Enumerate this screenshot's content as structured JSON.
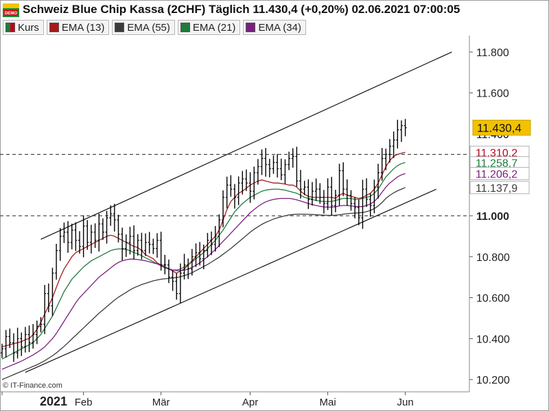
{
  "header": {
    "title": "Schweiz Blue Chip Kassa (2CHF) Täglich 11.430,4 (+0,20%) 02.06.2021 07:00:05",
    "badge_text": "DEMO"
  },
  "legend": [
    {
      "label": "Kurs",
      "color": "#c0001a"
    },
    {
      "label": "EMA (13)",
      "color": "#a8191b"
    },
    {
      "label": "EMA (55)",
      "color": "#3a3a3a"
    },
    {
      "label": "EMA (21)",
      "color": "#1f7a3e"
    },
    {
      "label": "EMA (34)",
      "color": "#7a1f7e"
    }
  ],
  "copyright": "© IT-Finance.com",
  "chart_data": {
    "type": "line",
    "subtype": "ohlc-bars with EMA overlays and trend channel",
    "ylim": [
      10140,
      11880
    ],
    "y_ticks": [
      "10.200",
      "10.400",
      "10.600",
      "10.800",
      "11.000",
      "11.600",
      "11.800"
    ],
    "y_tick_values": [
      10200,
      10400,
      10600,
      10800,
      11000,
      11600,
      11800
    ],
    "y_tick_bold": [
      false,
      false,
      false,
      false,
      true,
      false,
      false
    ],
    "y_partial_labels": [
      {
        "text": "11.400",
        "value": 11400,
        "color": "#000000"
      },
      {
        "text": "11.310,2",
        "value": 11304,
        "color": "#c0001a"
      }
    ],
    "x_labels": [
      {
        "text": "2021",
        "day": 0,
        "bold": true
      },
      {
        "text": "Feb",
        "day": 21
      },
      {
        "text": "Mär",
        "day": 41
      },
      {
        "text": "Apr",
        "day": 64
      },
      {
        "text": "Mai",
        "day": 84
      },
      {
        "text": "Jun",
        "day": 104
      }
    ],
    "last_price": {
      "text": "11.430,4",
      "value": 11430.4,
      "color": "#f2c200"
    },
    "series": [
      {
        "name": "Kurs",
        "color": "#000000",
        "closes": [
          10350,
          10410,
          10380,
          10330,
          10400,
          10360,
          10420,
          10380,
          10420,
          10460,
          10470,
          10620,
          10560,
          10720,
          10830,
          10900,
          10920,
          10870,
          10930,
          10880,
          10850,
          10950,
          10870,
          10920,
          10880,
          10960,
          10920,
          10990,
          11010,
          10980,
          10910,
          10840,
          10870,
          10900,
          10830,
          10880,
          10830,
          10870,
          10860,
          10840,
          10880,
          10760,
          10760,
          10700,
          10680,
          10620,
          10720,
          10760,
          10740,
          10800,
          10820,
          10790,
          10830,
          10880,
          10860,
          10900,
          10980,
          11090,
          11150,
          11130,
          11090,
          11160,
          11180,
          11160,
          11120,
          11210,
          11240,
          11280,
          11250,
          11230,
          11260,
          11230,
          11200,
          11250,
          11280,
          11290,
          11170,
          11130,
          11140,
          11080,
          11120,
          11130,
          11090,
          11060,
          11140,
          11050,
          11100,
          11220,
          11130,
          11100,
          11060,
          11040,
          10990,
          11130,
          11080,
          11050,
          11140,
          11210,
          11280,
          11300,
          11340,
          11370,
          11420,
          11440,
          11430
        ]
      },
      {
        "name": "EMA (13)",
        "color": "#a8191b",
        "values": [
          10360,
          10365,
          10370,
          10375,
          10380,
          10385,
          10395,
          10400,
          10420,
          10445,
          10480,
          10520,
          10560,
          10600,
          10650,
          10700,
          10740,
          10770,
          10800,
          10820,
          10830,
          10840,
          10850,
          10860,
          10870,
          10880,
          10890,
          10900,
          10905,
          10900,
          10890,
          10880,
          10870,
          10860,
          10850,
          10845,
          10830,
          10810,
          10800,
          10790,
          10770,
          10760,
          10750,
          10740,
          10730,
          10720,
          10730,
          10740,
          10760,
          10780,
          10800,
          10820,
          10840,
          10860,
          10880,
          10900,
          10930,
          10980,
          11030,
          11070,
          11090,
          11110,
          11120,
          11135,
          11150,
          11160,
          11170,
          11175,
          11170,
          11165,
          11160,
          11160,
          11158,
          11155,
          11150,
          11150,
          11140,
          11120,
          11105,
          11095,
          11090,
          11090,
          11090,
          11090,
          11090,
          11090,
          11085,
          11100,
          11110,
          11100,
          11095,
          11090,
          11085,
          11090,
          11100,
          11110,
          11130,
          11160,
          11200,
          11240,
          11270,
          11290,
          11300,
          11305,
          11310
        ]
      },
      {
        "name": "EMA (21)",
        "color": "#1f7a3e",
        "values": [
          10300,
          10310,
          10320,
          10330,
          10340,
          10350,
          10360,
          10370,
          10380,
          10400,
          10420,
          10450,
          10480,
          10510,
          10550,
          10590,
          10630,
          10660,
          10690,
          10710,
          10730,
          10750,
          10765,
          10780,
          10790,
          10800,
          10810,
          10820,
          10830,
          10835,
          10838,
          10838,
          10835,
          10830,
          10820,
          10815,
          10805,
          10795,
          10785,
          10775,
          10765,
          10755,
          10745,
          10740,
          10735,
          10735,
          10740,
          10750,
          10760,
          10775,
          10790,
          10805,
          10820,
          10840,
          10860,
          10880,
          10905,
          10930,
          10960,
          10990,
          11020,
          11040,
          11060,
          11075,
          11090,
          11100,
          11110,
          11120,
          11125,
          11128,
          11130,
          11130,
          11128,
          11125,
          11120,
          11115,
          11110,
          11100,
          11090,
          11085,
          11080,
          11075,
          11072,
          11070,
          11070,
          11070,
          11075,
          11080,
          11085,
          11085,
          11085,
          11080,
          11080,
          11085,
          11090,
          11095,
          11110,
          11130,
          11160,
          11190,
          11210,
          11230,
          11245,
          11255,
          11260
        ]
      },
      {
        "name": "EMA (34)",
        "color": "#7a1f7e",
        "values": [
          10250,
          10258,
          10266,
          10274,
          10282,
          10290,
          10300,
          10310,
          10320,
          10332,
          10345,
          10360,
          10380,
          10400,
          10425,
          10455,
          10485,
          10515,
          10545,
          10575,
          10600,
          10620,
          10640,
          10660,
          10680,
          10700,
          10715,
          10730,
          10745,
          10760,
          10772,
          10780,
          10785,
          10788,
          10788,
          10786,
          10783,
          10780,
          10775,
          10770,
          10765,
          10758,
          10750,
          10742,
          10735,
          10732,
          10732,
          10735,
          10740,
          10748,
          10758,
          10770,
          10785,
          10800,
          10818,
          10835,
          10855,
          10875,
          10895,
          10915,
          10935,
          10955,
          10975,
          10995,
          11015,
          11030,
          11045,
          11058,
          11068,
          11075,
          11080,
          11083,
          11085,
          11085,
          11085,
          11082,
          11078,
          11072,
          11066,
          11060,
          11055,
          11050,
          11046,
          11043,
          11042,
          11042,
          11044,
          11048,
          11050,
          11050,
          11048,
          11046,
          11044,
          11045,
          11050,
          11058,
          11070,
          11090,
          11115,
          11140,
          11160,
          11175,
          11190,
          11200,
          11206
        ]
      },
      {
        "name": "EMA (55)",
        "color": "#3a3a3a",
        "values": [
          10200,
          10208,
          10216,
          10224,
          10232,
          10240,
          10248,
          10256,
          10264,
          10272,
          10282,
          10292,
          10304,
          10316,
          10330,
          10346,
          10362,
          10380,
          10398,
          10416,
          10434,
          10452,
          10470,
          10488,
          10506,
          10524,
          10540,
          10556,
          10572,
          10588,
          10602,
          10614,
          10626,
          10638,
          10648,
          10656,
          10664,
          10670,
          10676,
          10682,
          10686,
          10690,
          10692,
          10694,
          10696,
          10698,
          10702,
          10708,
          10714,
          10722,
          10732,
          10742,
          10752,
          10762,
          10774,
          10786,
          10798,
          10812,
          10826,
          10840,
          10856,
          10872,
          10888,
          10904,
          10920,
          10934,
          10946,
          10958,
          10968,
          10976,
          10984,
          10990,
          10995,
          11000,
          11004,
          11006,
          11008,
          11008,
          11008,
          11007,
          11006,
          11005,
          11004,
          11003,
          11002,
          11002,
          11003,
          11005,
          11008,
          11010,
          11012,
          11013,
          11014,
          11016,
          11020,
          11026,
          11035,
          11048,
          11065,
          11085,
          11100,
          11112,
          11122,
          11130,
          11138
        ]
      }
    ],
    "right_labels": [
      {
        "text": "11.310,2",
        "value": 11310.2,
        "color": "#c0001a"
      },
      {
        "text": "11.258,7",
        "value": 11258.7,
        "color": "#1f7a3e"
      },
      {
        "text": "11.206,2",
        "value": 11206.2,
        "color": "#7a1f7e"
      },
      {
        "text": "11.137,9",
        "value": 11137.9,
        "color": "#3a3a3a"
      }
    ],
    "horizontal_lines": [
      {
        "value": 11300,
        "style": "dashed"
      },
      {
        "value": 11000,
        "style": "dashed"
      }
    ],
    "channel": {
      "upper": [
        {
          "day": 10,
          "value": 10885
        },
        {
          "day": 116,
          "value": 11800
        }
      ],
      "lower": [
        {
          "day": 6,
          "value": 10235
        },
        {
          "day": 112,
          "value": 11130
        }
      ]
    },
    "grid": false
  }
}
